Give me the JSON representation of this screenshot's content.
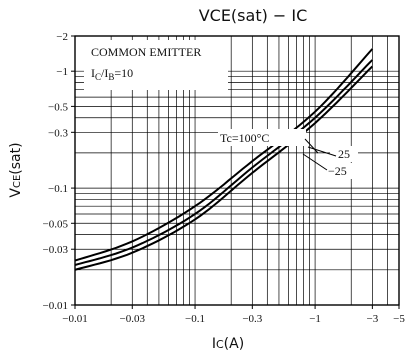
{
  "chart_data": {
    "type": "line",
    "title": "VCE(sat) − IC",
    "xlabel": "IC(A)",
    "ylabel": "VCE(sat)",
    "x_scale": "log",
    "y_scale": "log",
    "xlim": [
      -0.01,
      -5
    ],
    "ylim": [
      -0.01,
      -2
    ],
    "grid": true,
    "x_ticks": [
      {
        "value": -0.01,
        "label": "−0.01"
      },
      {
        "value": -0.03,
        "label": "−0.03"
      },
      {
        "value": -0.1,
        "label": "−0.1"
      },
      {
        "value": -0.3,
        "label": "−0.3"
      },
      {
        "value": -1,
        "label": "−1"
      },
      {
        "value": -3,
        "label": "−3"
      },
      {
        "value": -5,
        "label": "−5"
      }
    ],
    "y_ticks": [
      {
        "value": -2,
        "label": "−2"
      },
      {
        "value": -1,
        "label": "−1"
      },
      {
        "value": -0.5,
        "label": "−0.5"
      },
      {
        "value": -0.3,
        "label": "−0.3"
      },
      {
        "value": -0.1,
        "label": "−0.1"
      },
      {
        "value": -0.05,
        "label": "−0.05"
      },
      {
        "value": -0.03,
        "label": "−0.03"
      },
      {
        "value": -0.01,
        "label": "−0.01"
      }
    ],
    "annotations": {
      "condition_1": "COMMON EMITTER",
      "condition_2": "IC/IB=10"
    },
    "series": [
      {
        "name": "Tc=100°C",
        "x": [
          -0.01,
          -0.03,
          -0.1,
          -0.3,
          -1,
          -3
        ],
        "y": [
          -0.024,
          -0.035,
          -0.07,
          -0.17,
          -0.45,
          -1.55
        ]
      },
      {
        "name": "25",
        "x": [
          -0.01,
          -0.03,
          -0.1,
          -0.3,
          -1,
          -3
        ],
        "y": [
          -0.022,
          -0.031,
          -0.06,
          -0.15,
          -0.4,
          -1.25
        ]
      },
      {
        "name": "−25",
        "x": [
          -0.01,
          -0.03,
          -0.1,
          -0.3,
          -1,
          -3
        ],
        "y": [
          -0.02,
          -0.028,
          -0.054,
          -0.135,
          -0.36,
          -1.1
        ]
      }
    ]
  }
}
